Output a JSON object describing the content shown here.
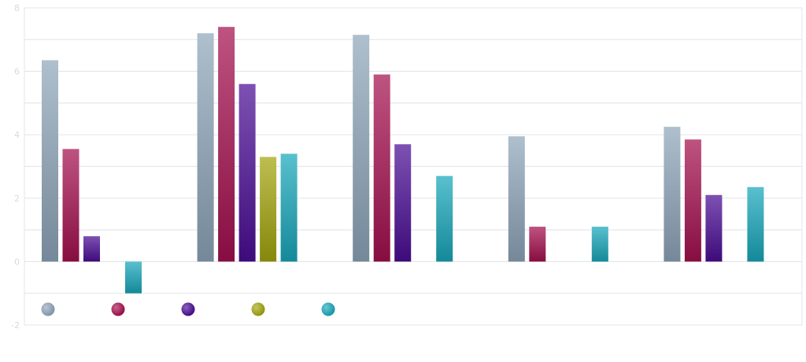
{
  "chart_data": {
    "type": "bar",
    "title": "",
    "xlabel": "",
    "ylabel": "",
    "ylim": [
      -2,
      8
    ],
    "yticks": [
      -2,
      0,
      2,
      4,
      6,
      8
    ],
    "grid": true,
    "legend_position": "bottom-left",
    "categories": [
      "",
      "",
      "",
      "",
      ""
    ],
    "series": [
      {
        "name": "",
        "color": "#8fa6ba",
        "values": [
          6.35,
          7.2,
          7.15,
          3.95,
          4.25
        ]
      },
      {
        "name": "",
        "color": "#a5104f",
        "values": [
          3.55,
          7.4,
          5.9,
          1.1,
          3.85
        ]
      },
      {
        "name": "",
        "color": "#4a0d95",
        "values": [
          0.8,
          5.6,
          3.7,
          null,
          2.1
        ]
      },
      {
        "name": "",
        "color": "#a3a50e",
        "values": [
          null,
          3.3,
          null,
          null,
          null
        ]
      },
      {
        "name": "",
        "color": "#18a7bb",
        "values": [
          -1.0,
          3.4,
          2.7,
          1.1,
          2.35
        ]
      }
    ]
  }
}
